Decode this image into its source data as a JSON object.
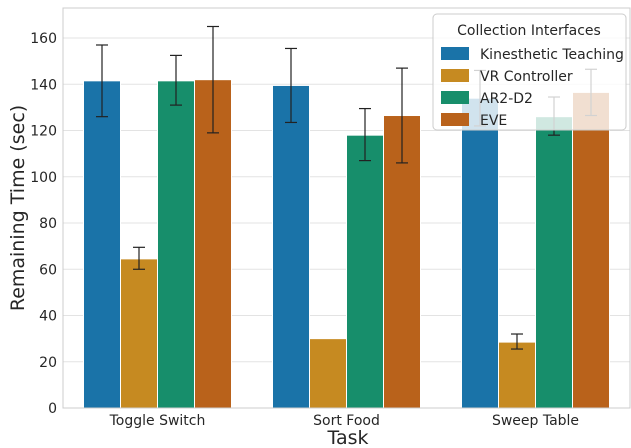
{
  "chart_data": {
    "type": "bar",
    "xlabel": "Task",
    "ylabel": "Remaining Time (sec)",
    "ylim": [
      0,
      173
    ],
    "yticks": [
      0,
      20,
      40,
      60,
      80,
      100,
      120,
      140,
      160
    ],
    "categories": [
      "Toggle Switch",
      "Sort Food",
      "Sweep Table"
    ],
    "grid": true,
    "legend": {
      "title": "Collection Interfaces",
      "placement": "top-right"
    },
    "series": [
      {
        "name": "Kinesthetic Teaching",
        "color": "#1a73a8",
        "values": [
          141.5,
          139.5,
          134
        ],
        "err_low": [
          126,
          123.5,
          122
        ],
        "err_high": [
          157,
          155.5,
          146
        ]
      },
      {
        "name": "VR Controller",
        "color": "#c68a21",
        "values": [
          64.5,
          30,
          28.5
        ],
        "err_low": [
          60,
          30,
          25.5
        ],
        "err_high": [
          69.5,
          30,
          32
        ]
      },
      {
        "name": "AR2-D2",
        "color": "#178e6b",
        "values": [
          141.5,
          118,
          126
        ],
        "err_low": [
          131,
          107,
          118
        ],
        "err_high": [
          152.5,
          129.5,
          134.5
        ]
      },
      {
        "name": "EVE",
        "color": "#b9621b",
        "values": [
          142,
          126.5,
          136.5
        ],
        "err_low": [
          119,
          106,
          126.5
        ],
        "err_high": [
          165,
          147,
          146.5
        ]
      }
    ]
  }
}
